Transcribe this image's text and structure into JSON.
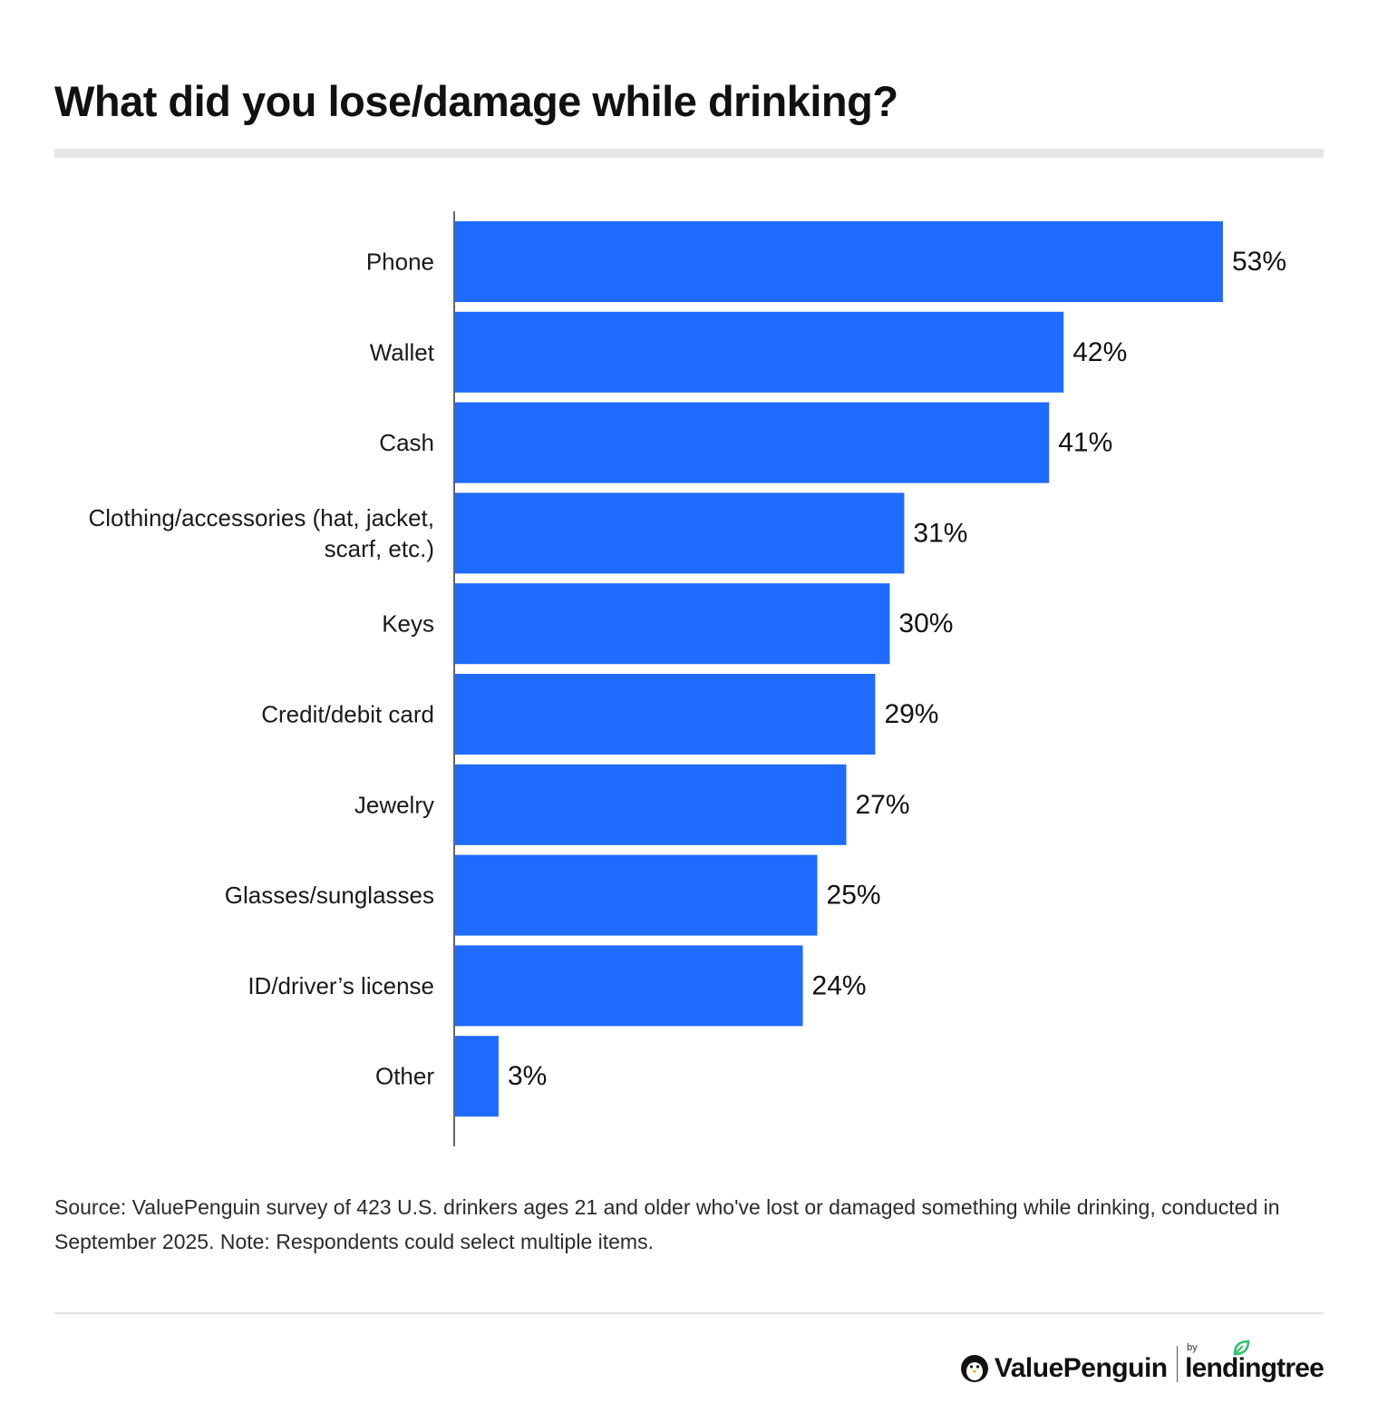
{
  "chart_data": {
    "type": "bar",
    "orientation": "horizontal",
    "title": "What did you lose/damage while drinking?",
    "categories": [
      [
        "Phone"
      ],
      [
        "Wallet"
      ],
      [
        "Cash"
      ],
      [
        "Clothing/accessories (hat, jacket,",
        "scarf, etc.)"
      ],
      [
        "Keys"
      ],
      [
        "Credit/debit card"
      ],
      [
        "Jewelry"
      ],
      [
        "Glasses/sunglasses"
      ],
      [
        "ID/driver’s license"
      ],
      [
        "Other"
      ]
    ],
    "values": [
      53,
      42,
      41,
      31,
      30,
      29,
      27,
      25,
      24,
      3
    ],
    "value_labels": [
      "53%",
      "42%",
      "41%",
      "31%",
      "30%",
      "29%",
      "27%",
      "25%",
      "24%",
      "3%"
    ],
    "unit": "%",
    "xlim": [
      0,
      53
    ],
    "grid": false,
    "legend": "none",
    "bar_color": "#1f6bff"
  },
  "source_note": "Source: ValuePenguin survey of 423 U.S. drinkers ages 21 and older who've lost or damaged something while drinking, conducted in September 2025. Note: Respondents could select multiple items.",
  "brand": {
    "valuepenguin": "ValuePenguin",
    "by": "by",
    "lendingtree": "lendingtree",
    "penguin_icon": "penguin-icon",
    "leaf_icon": "leaf-icon"
  }
}
